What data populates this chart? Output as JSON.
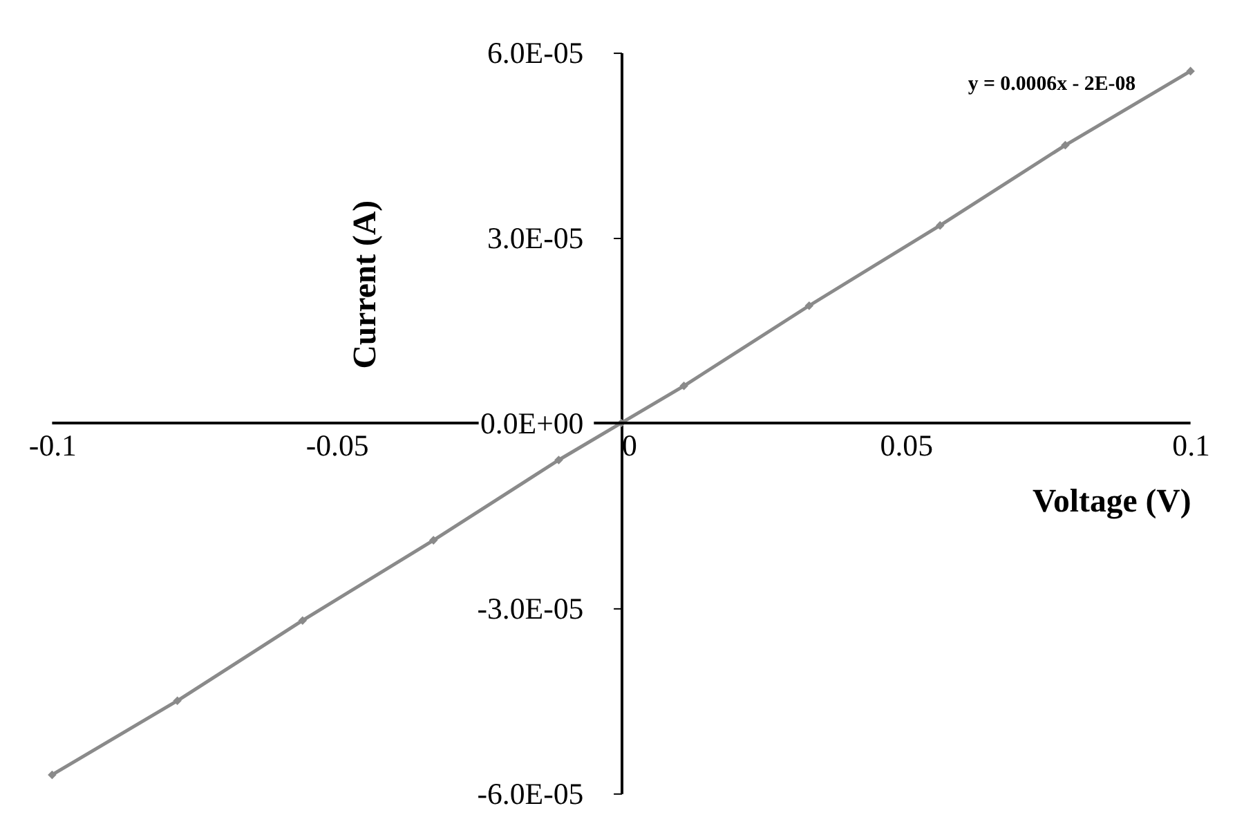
{
  "chart_data": {
    "type": "line",
    "xlabel": "Voltage (V)",
    "ylabel": "Current (A)",
    "annotations": [
      "y = 0.0006x - 2E-08"
    ],
    "x": [
      -0.1,
      -0.078,
      -0.056,
      -0.033,
      -0.011,
      0,
      0.011,
      0.033,
      0.056,
      0.078,
      0.1
    ],
    "series": [
      {
        "color": "#8a8a8a",
        "values": [
          -5.7e-05,
          -4.5e-05,
          -3.2e-05,
          -1.9e-05,
          -6e-06,
          0,
          6e-06,
          1.9e-05,
          3.2e-05,
          4.5e-05,
          5.7e-05
        ]
      }
    ],
    "xlim": [
      -0.1,
      0.1
    ],
    "xticks": [
      -0.1,
      -0.05,
      0,
      0.05,
      0.1
    ],
    "ylim": [
      -6e-05,
      6e-05
    ],
    "yticks": [
      {
        "value": -6e-05,
        "label": "-6.0E-05"
      },
      {
        "value": -3e-05,
        "label": "-3.0E-05"
      },
      {
        "value": 0,
        "label": "0.0E+00"
      },
      {
        "value": 3e-05,
        "label": "3.0E-05"
      },
      {
        "value": 6e-05,
        "label": "6.0E-05"
      }
    ],
    "marker": "diamond",
    "line_style": "solid"
  }
}
